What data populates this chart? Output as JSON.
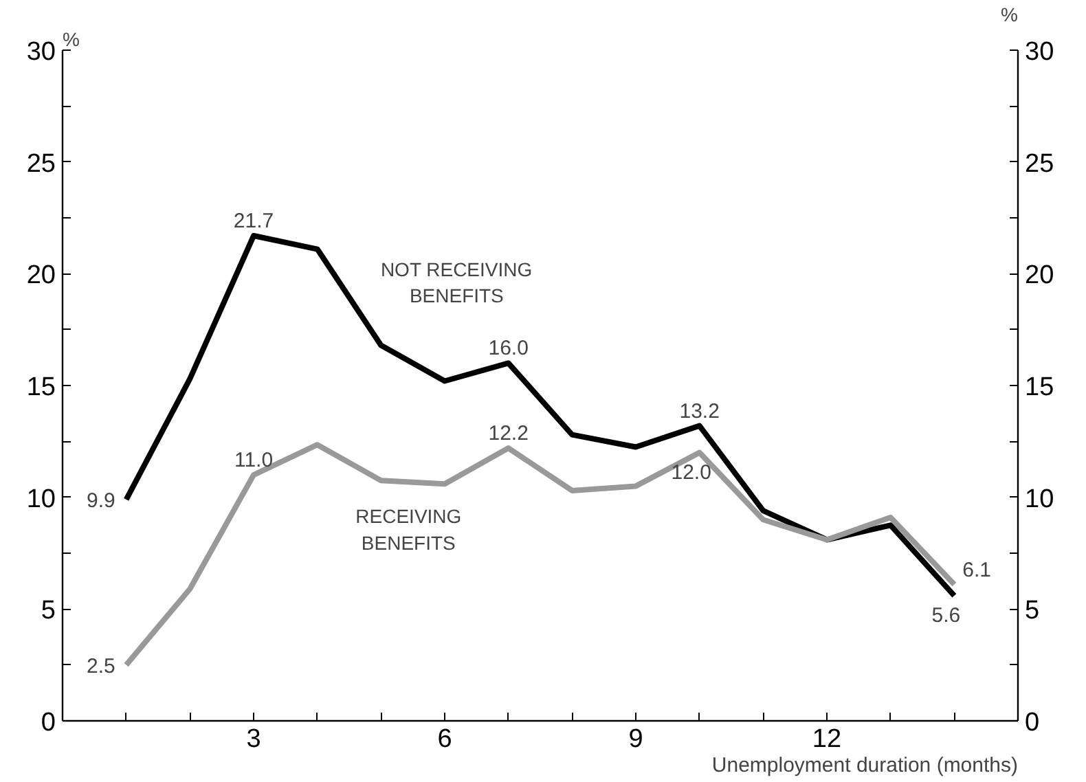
{
  "chart_data": {
    "type": "line",
    "xlabel": "Unemployment duration (months)",
    "ylabel": "%",
    "y2label": "%",
    "x": [
      1,
      2,
      3,
      4,
      5,
      6,
      7,
      8,
      9,
      10,
      11,
      12,
      13,
      14
    ],
    "series": [
      {
        "name": "NOT RECEIVING BENEFITS",
        "color": "#000000",
        "values": [
          9.9,
          15.3,
          21.7,
          21.1,
          16.8,
          15.2,
          16.0,
          12.8,
          12.25,
          13.2,
          9.4,
          8.1,
          8.75,
          5.6
        ],
        "value_labels": [
          "9.9",
          null,
          "21.7",
          null,
          null,
          null,
          "16.0",
          null,
          null,
          "13.2",
          null,
          null,
          null,
          "5.6"
        ]
      },
      {
        "name": "RECEIVING BENEFITS",
        "color": "#999999",
        "values": [
          2.5,
          5.9,
          11.0,
          12.35,
          10.75,
          10.6,
          12.2,
          10.3,
          10.5,
          12.0,
          9.0,
          8.1,
          9.1,
          6.1
        ],
        "value_labels": [
          "2.5",
          null,
          "11.0",
          null,
          null,
          null,
          "12.2",
          null,
          null,
          "12.0",
          null,
          null,
          null,
          "6.1"
        ]
      }
    ],
    "xlim": [
      0,
      15
    ],
    "xticks": [
      {
        "value": 1,
        "label": null
      },
      {
        "value": 2,
        "label": null
      },
      3,
      {
        "value": 4,
        "label": null
      },
      {
        "value": 5,
        "label": null
      },
      6,
      {
        "value": 7,
        "label": null
      },
      {
        "value": 8,
        "label": null
      },
      9,
      {
        "value": 10,
        "label": null
      },
      {
        "value": 11,
        "label": null
      },
      12,
      {
        "value": 13,
        "label": null
      },
      {
        "value": 14,
        "label": null
      }
    ],
    "ylim": [
      0,
      30
    ],
    "yticks": [
      0,
      {
        "value": 2.5,
        "label": null
      },
      5,
      {
        "value": 7.5,
        "label": null
      },
      10,
      {
        "value": 12.5,
        "label": null
      },
      15,
      {
        "value": 17.5,
        "label": null
      },
      20,
      {
        "value": 22.5,
        "label": null
      },
      25,
      {
        "value": 27.5,
        "label": null
      },
      30
    ],
    "y2lim": [
      0,
      30
    ],
    "y2ticks": [
      0,
      {
        "value": 2.5,
        "label": null
      },
      5,
      {
        "value": 7.5,
        "label": null
      },
      10,
      {
        "value": 12.5,
        "label": null
      },
      15,
      {
        "value": 17.5,
        "label": null
      },
      20,
      {
        "value": 22.5,
        "label": null
      },
      25,
      {
        "value": 27.5,
        "label": null
      },
      30
    ],
    "grid": false,
    "marker": "none",
    "line_style": "solid"
  }
}
